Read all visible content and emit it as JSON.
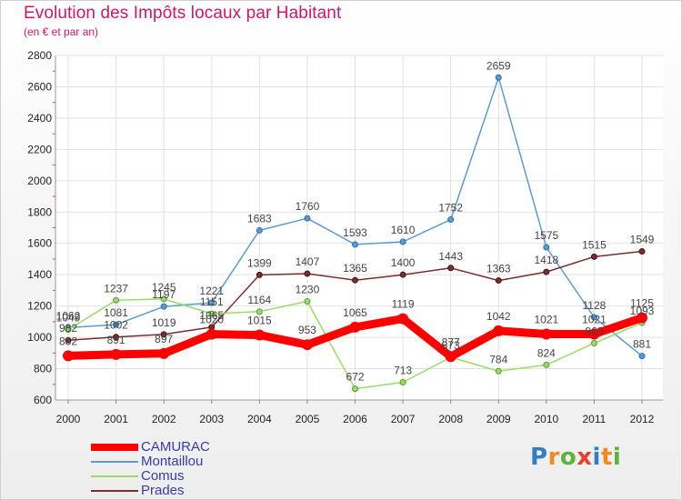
{
  "chart_data": {
    "type": "line",
    "title": "Evolution des Impôts locaux par Habitant",
    "subtitle": "(en € et par an)",
    "xlabel": "",
    "ylabel": "",
    "x": [
      "2000",
      "2001",
      "2002",
      "2003",
      "2004",
      "2005",
      "2006",
      "2007",
      "2008",
      "2009",
      "2010",
      "2011",
      "2012"
    ],
    "ylim": [
      600,
      2800
    ],
    "yticks": [
      "600",
      "800",
      "1000",
      "1200",
      "1400",
      "1600",
      "1800",
      "2000",
      "2200",
      "2400",
      "2600",
      "2800"
    ],
    "grid": true,
    "legend_position": "bottom-left",
    "series": [
      {
        "name": "CAMURAC",
        "color": "#ff0000",
        "values": [
          882,
          891,
          897,
          1020,
          1015,
          953,
          1065,
          1119,
          877,
          1042,
          1021,
          1021,
          1125
        ],
        "labels": [
          "882",
          "891",
          "897",
          "1020",
          "1015",
          "953",
          "1065",
          "1119",
          "877",
          "1042",
          "1021",
          "1021",
          "1125"
        ]
      },
      {
        "name": "Montaillou",
        "color": "#5b9bd5",
        "values": [
          1062,
          1081,
          1197,
          1221,
          1683,
          1760,
          1593,
          1610,
          1752,
          2659,
          1575,
          1128,
          881
        ],
        "labels": [
          "1062",
          "1081",
          "1197",
          "1221",
          "1683",
          "1760",
          "1593",
          "1610",
          "1752",
          "2659",
          "1575",
          "1128",
          "881"
        ]
      },
      {
        "name": "Comus",
        "color": "#99dd66",
        "values": [
          1049,
          1237,
          1245,
          1151,
          1164,
          1230,
          672,
          713,
          873,
          784,
          824,
          963,
          1093
        ],
        "labels": [
          "1049",
          "1237",
          "1245",
          "1151",
          "1164",
          "1230",
          "672",
          "713",
          "873",
          "784",
          "824",
          "963",
          "1093"
        ]
      },
      {
        "name": "Prades",
        "color": "#7b2e2e",
        "values": [
          982,
          1002,
          1019,
          1065,
          1399,
          1407,
          1365,
          1400,
          1443,
          1363,
          1418,
          1515,
          1549
        ],
        "labels": [
          "982",
          "1002",
          "1019",
          "1065",
          "1399",
          "1407",
          "1365",
          "1400",
          "1443",
          "1363",
          "1418",
          "1515",
          "1549"
        ]
      }
    ]
  },
  "logo": {
    "letters": [
      "P",
      "r",
      "o",
      "x",
      "i",
      "t",
      "i"
    ],
    "colors": [
      "#2f7fc8",
      "#f08a1e",
      "#5db13c",
      "#e5402b",
      "#2f7fc8",
      "#f08a1e",
      "#5db13c"
    ]
  }
}
